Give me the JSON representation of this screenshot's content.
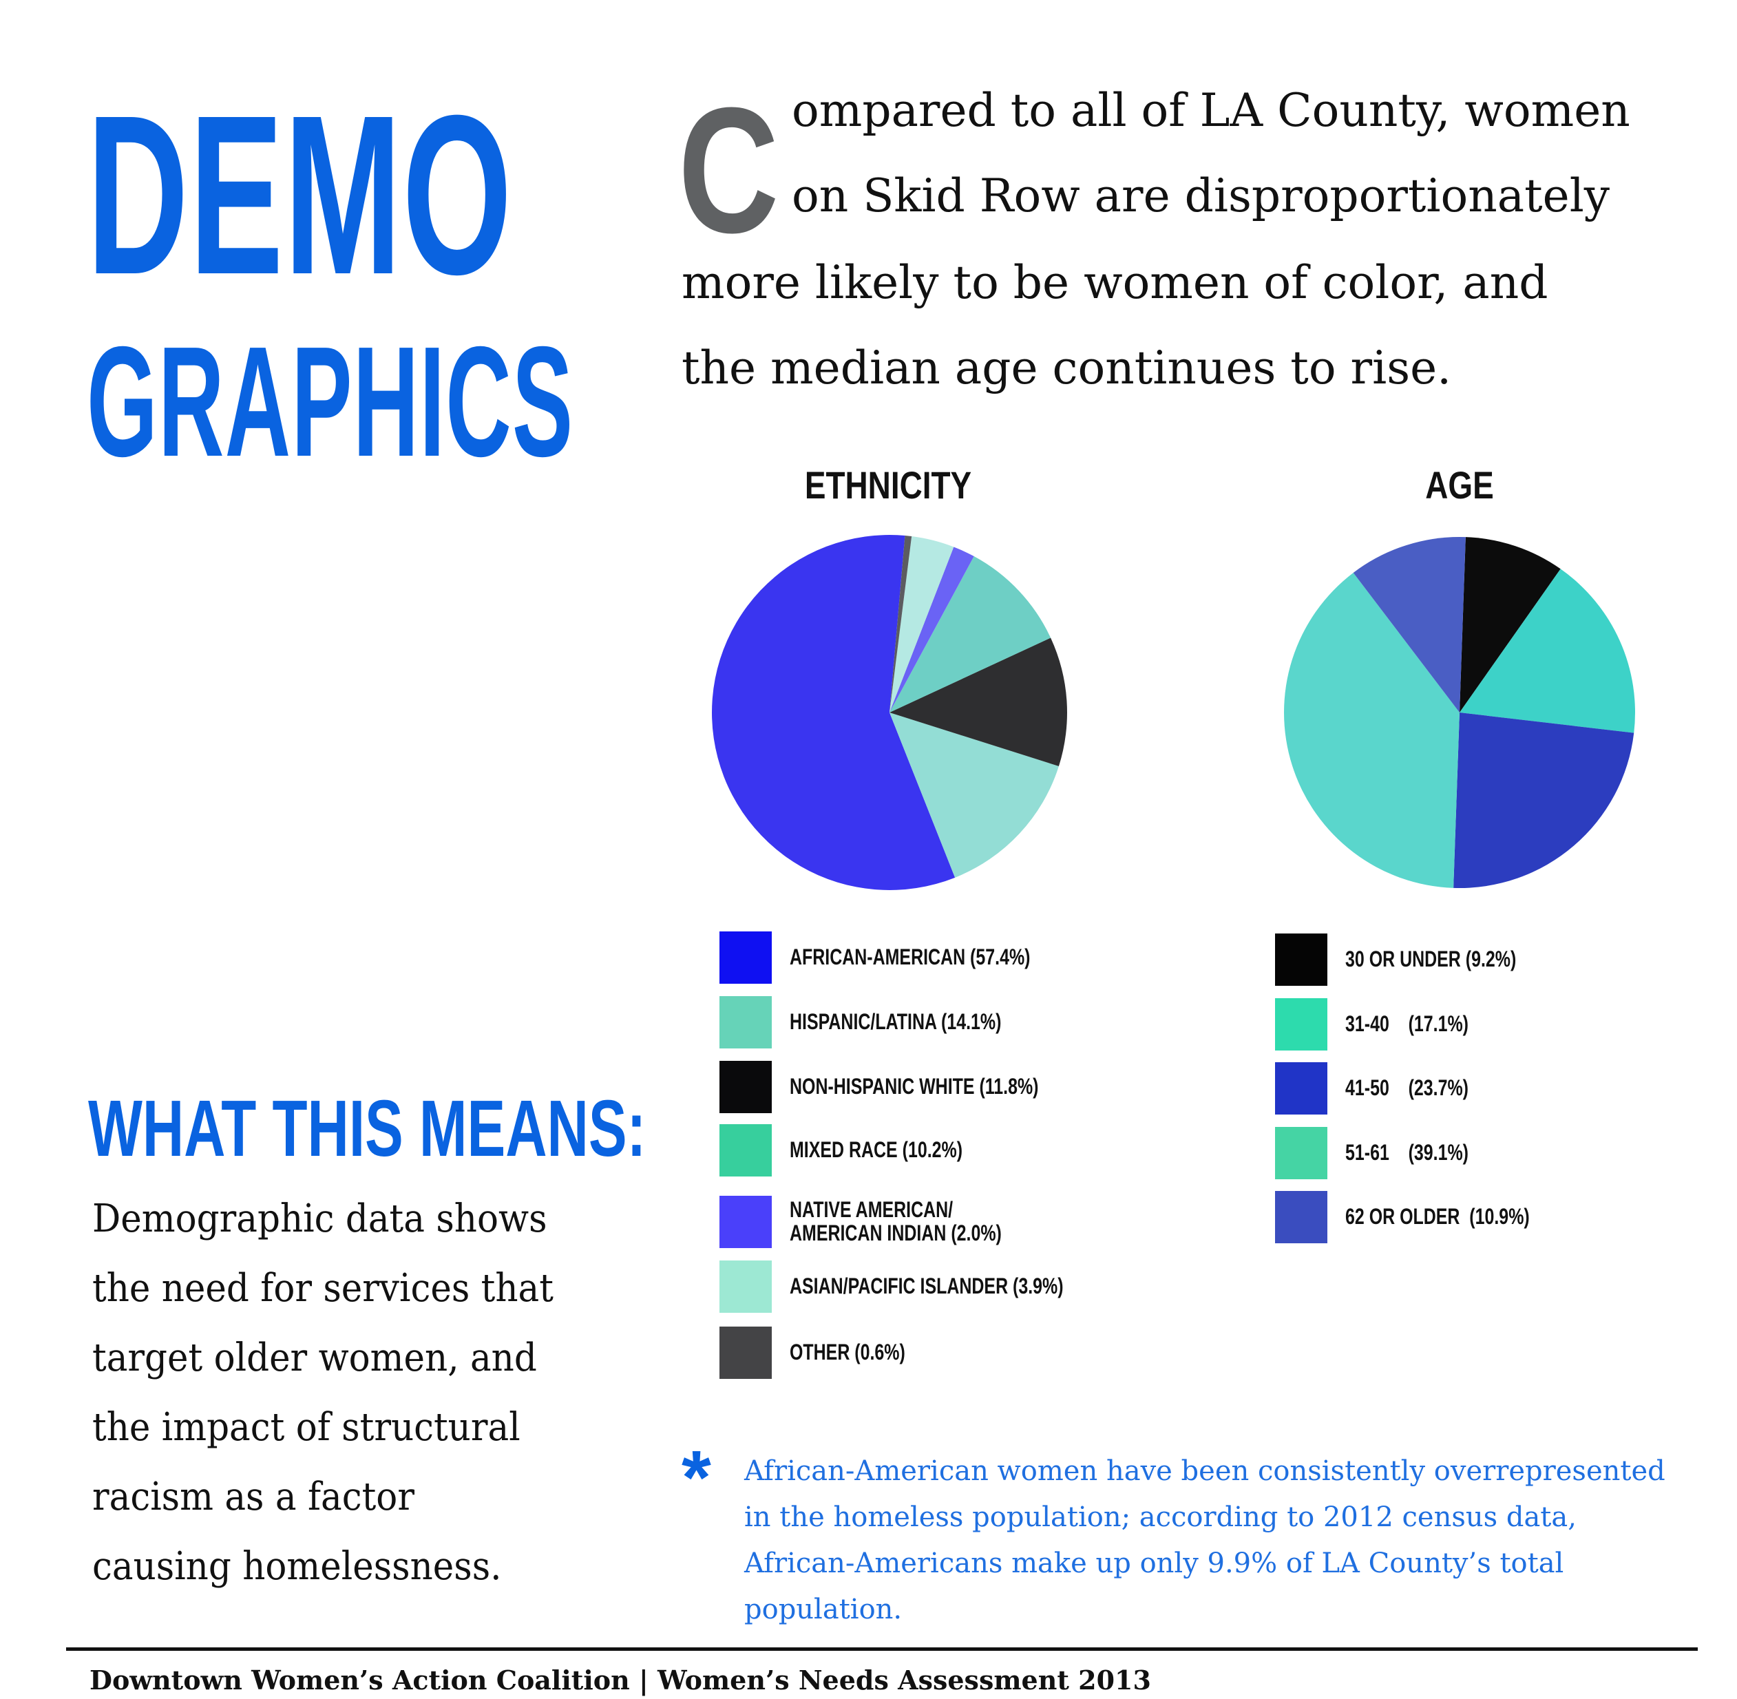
{
  "title": {
    "line1": "DEMO",
    "line2": "GRAPHICS"
  },
  "intro": {
    "drop_cap": "C",
    "line1": "ompared to all of LA County, women",
    "line2": "on Skid Row are disproportionately",
    "line3": "more likely to be women of color, and",
    "line4": "the median age continues to rise."
  },
  "chart_data": [
    {
      "type": "pie",
      "title": "ETHNICITY",
      "labels": [
        "AFRICAN-AMERICAN",
        "HISPANIC/LATINA",
        "NON-HISPANIC WHITE",
        "MIXED RACE",
        "NATIVE AMERICAN/ AMERICAN INDIAN",
        "ASIAN/PACIFIC ISLANDER",
        "OTHER"
      ],
      "values": [
        57.4,
        14.1,
        11.8,
        10.2,
        2.0,
        3.9,
        0.6
      ],
      "legend_labels": [
        "AFRICAN-AMERICAN (57.4%)",
        "HISPANIC/LATINA (14.1%)",
        "NON-HISPANIC WHITE (11.8%)",
        "MIXED RACE (10.2%)",
        "NATIVE AMERICAN/\nAMERICAN INDIAN (2.0%)",
        "ASIAN/PACIFIC ISLANDER (3.9%)",
        "OTHER (0.6%)"
      ],
      "slice_colors": [
        "#3a35f0",
        "#93ddd5",
        "#2e2e30",
        "#6ecfc5",
        "#6a63f5",
        "#b5e9e3",
        "#5c5c60"
      ],
      "legend_colors": [
        "#0f10f2",
        "#66d3b8",
        "#0a0a0c",
        "#37cf9d",
        "#4a40fa",
        "#9de8d3",
        "#444446"
      ]
    },
    {
      "type": "pie",
      "title": "AGE",
      "labels": [
        "30 OR UNDER",
        "31-40",
        "41-50",
        "51-61",
        "62 OR OLDER"
      ],
      "values": [
        9.2,
        17.1,
        23.7,
        39.1,
        10.9
      ],
      "legend_labels": [
        "30 OR UNDER (9.2%)",
        "31-40    (17.1%)",
        "41-50    (23.7%)",
        "51-61    (39.1%)",
        "62 OR OLDER  (10.9%)"
      ],
      "slice_colors": [
        "#0c0c0c",
        "#3dd2c8",
        "#2c3dbf",
        "#5ad6cc",
        "#4a5ec4"
      ],
      "legend_colors": [
        "#050505",
        "#2ddbad",
        "#2034c7",
        "#45d4a4",
        "#3a4dbf"
      ]
    }
  ],
  "means": {
    "title": "WHAT THIS MEANS:",
    "body": "Demographic data shows the need for services that target older women, and the impact of structural racism as a factor causing homelessness."
  },
  "footnote": {
    "asterisk": "*",
    "text": "African-American women have been consistently overrepresented in the homeless population; according to 2012 census data, African-Americans make up only 9.9% of LA County’s total population."
  },
  "footer": "Downtown Women’s Action Coalition  |  Women’s Needs Assessment 2013"
}
